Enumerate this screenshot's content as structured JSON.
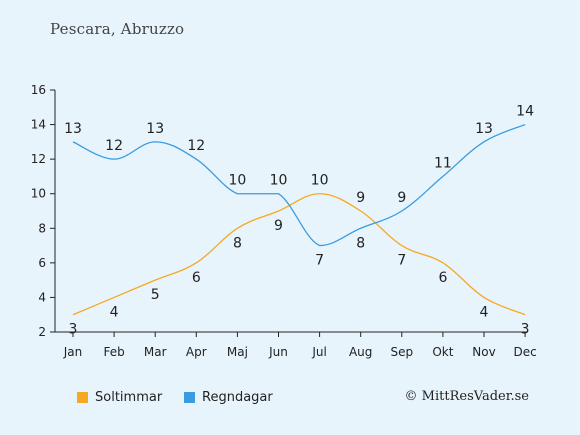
{
  "location": "Pescara, Abruzzo",
  "credit": "© MittResVader.se",
  "colors": {
    "sun": "#f7a823",
    "rain": "#3a9be0",
    "background": "#e8f4fb"
  },
  "legend": [
    {
      "label": "Soltimmar",
      "color": "#f7a823"
    },
    {
      "label": "Regndagar",
      "color": "#3a9be0"
    }
  ],
  "chart_data": {
    "type": "line",
    "categories": [
      "Jan",
      "Feb",
      "Mar",
      "Apr",
      "Maj",
      "Jun",
      "Jul",
      "Aug",
      "Sep",
      "Okt",
      "Nov",
      "Dec"
    ],
    "series": [
      {
        "name": "Soltimmar",
        "values": [
          3,
          4,
          5,
          6,
          8,
          9,
          10,
          9,
          7,
          6,
          4,
          3
        ]
      },
      {
        "name": "Regndagar",
        "values": [
          13,
          12,
          13,
          12,
          10,
          10,
          7,
          8,
          9,
          11,
          13,
          14
        ]
      }
    ],
    "yticks": [
      2,
      4,
      6,
      8,
      10,
      12,
      14,
      16
    ],
    "ylim": [
      2,
      16
    ],
    "grid": false,
    "legend_position": "bottom"
  }
}
